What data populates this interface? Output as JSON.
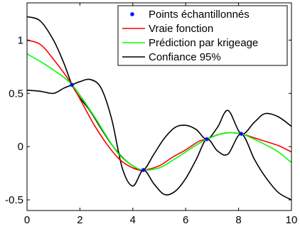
{
  "chart_data": {
    "type": "line",
    "xlim": [
      0,
      10
    ],
    "ylim": [
      -0.6,
      1.35
    ],
    "xticks": [
      0,
      2,
      4,
      6,
      8,
      10
    ],
    "yticks": [
      -0.5,
      0,
      0.5,
      1
    ],
    "ytick_labels": [
      "-0.5",
      "0",
      "0.5",
      "1"
    ],
    "grid": false,
    "legend_position": "top-right",
    "legend": [
      {
        "label": "Points échantillonnés",
        "style": "marker",
        "color": "#0000ff"
      },
      {
        "label": "Vraie fonction",
        "style": "line",
        "color": "#ff0000"
      },
      {
        "label": "Prédiction par krigeage",
        "style": "line",
        "color": "#00ff00"
      },
      {
        "label": "Confiance 95%",
        "style": "line",
        "color": "#000000"
      }
    ],
    "points": {
      "name": "Points échantillonnés",
      "color": "#0000ff",
      "x": [
        1.7,
        4.4,
        6.8,
        8.1
      ],
      "y": [
        0.58,
        -0.22,
        0.07,
        0.12
      ]
    },
    "series": [
      {
        "name": "Vraie fonction",
        "color": "#ff0000",
        "x": [
          0,
          0.5,
          1.0,
          1.7,
          2.5,
          3.0,
          3.5,
          4.0,
          4.4,
          5.0,
          5.5,
          6.0,
          6.5,
          6.8,
          7.2,
          7.6,
          8.1,
          8.5,
          9.0,
          9.5,
          10
        ],
        "y": [
          1.0,
          0.96,
          0.82,
          0.58,
          0.22,
          0.03,
          -0.12,
          -0.2,
          -0.22,
          -0.18,
          -0.1,
          -0.03,
          0.05,
          0.07,
          0.11,
          0.13,
          0.12,
          0.09,
          0.05,
          0.01,
          -0.05
        ]
      },
      {
        "name": "Prédiction par krigeage",
        "color": "#00ff00",
        "x": [
          0,
          0.5,
          1.0,
          1.7,
          2.5,
          3.0,
          3.5,
          4.0,
          4.4,
          5.0,
          5.5,
          6.0,
          6.5,
          6.8,
          7.2,
          7.6,
          8.1,
          8.5,
          9.0,
          9.5,
          10
        ],
        "y": [
          0.87,
          0.8,
          0.72,
          0.58,
          0.3,
          0.1,
          -0.08,
          -0.18,
          -0.22,
          -0.2,
          -0.13,
          -0.05,
          0.03,
          0.07,
          0.11,
          0.13,
          0.12,
          0.08,
          0.02,
          -0.05,
          -0.15
        ]
      },
      {
        "name": "Confiance 95% (sup)",
        "color": "#000000",
        "x": [
          0,
          0.5,
          1.0,
          1.4,
          1.7,
          2.0,
          2.4,
          2.8,
          3.2,
          3.6,
          4.0,
          4.4,
          4.8,
          5.2,
          5.6,
          6.0,
          6.4,
          6.8,
          7.2,
          7.6,
          8.1,
          8.6,
          9.0,
          9.5,
          10
        ],
        "y": [
          1.22,
          1.18,
          1.0,
          0.78,
          0.58,
          0.46,
          0.33,
          0.17,
          0.02,
          -0.1,
          -0.18,
          -0.22,
          -0.07,
          0.08,
          0.18,
          0.2,
          0.16,
          0.07,
          0.18,
          0.34,
          0.12,
          0.23,
          0.31,
          0.28,
          0.19
        ]
      },
      {
        "name": "Confiance 95% (inf)",
        "color": "#000000",
        "x": [
          0,
          0.5,
          1.0,
          1.4,
          1.7,
          2.0,
          2.4,
          2.8,
          3.2,
          3.6,
          4.0,
          4.4,
          4.8,
          5.2,
          5.6,
          6.0,
          6.4,
          6.8,
          7.2,
          7.6,
          8.1,
          8.6,
          9.0,
          9.5,
          10
        ],
        "y": [
          0.53,
          0.52,
          0.5,
          0.55,
          0.58,
          0.61,
          0.63,
          0.55,
          0.26,
          -0.2,
          -0.37,
          -0.22,
          -0.35,
          -0.45,
          -0.42,
          -0.3,
          -0.12,
          0.07,
          -0.04,
          -0.07,
          0.12,
          -0.12,
          -0.28,
          -0.43,
          -0.5
        ]
      }
    ]
  }
}
